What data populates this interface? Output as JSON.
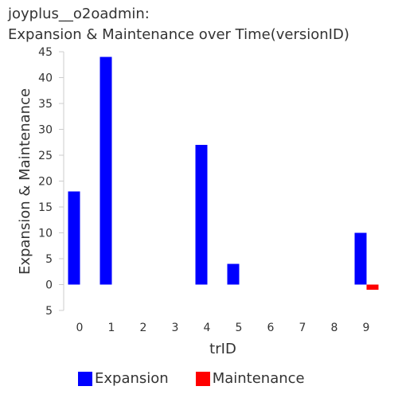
{
  "title": {
    "line1": "joyplus__o2oadmin:",
    "line2": "Expansion & Maintenance over Time(versionID)"
  },
  "chart_data": {
    "type": "bar",
    "categories": [
      "0",
      "1",
      "2",
      "3",
      "4",
      "5",
      "6",
      "7",
      "8",
      "9"
    ],
    "series": [
      {
        "name": "Expansion",
        "color": "#0000ff",
        "values": [
          18,
          44,
          0,
          0,
          27,
          4,
          0,
          0,
          0,
          10
        ]
      },
      {
        "name": "Maintenance",
        "color": "#ff0000",
        "values": [
          0,
          0,
          0,
          0,
          0,
          0,
          0,
          0,
          0,
          -1
        ]
      }
    ],
    "xlabel": "trID",
    "ylabel": "Expansion & Maintenance",
    "ylim": [
      -5,
      45
    ],
    "yticks": [
      45,
      40,
      35,
      30,
      25,
      20,
      15,
      10,
      5,
      0,
      -5
    ],
    "ytick_labels": [
      "45",
      "40",
      "35",
      "30",
      "25",
      "20",
      "15",
      "10",
      "5",
      "0",
      "5"
    ],
    "grid": false,
    "legend_position": "bottom"
  }
}
